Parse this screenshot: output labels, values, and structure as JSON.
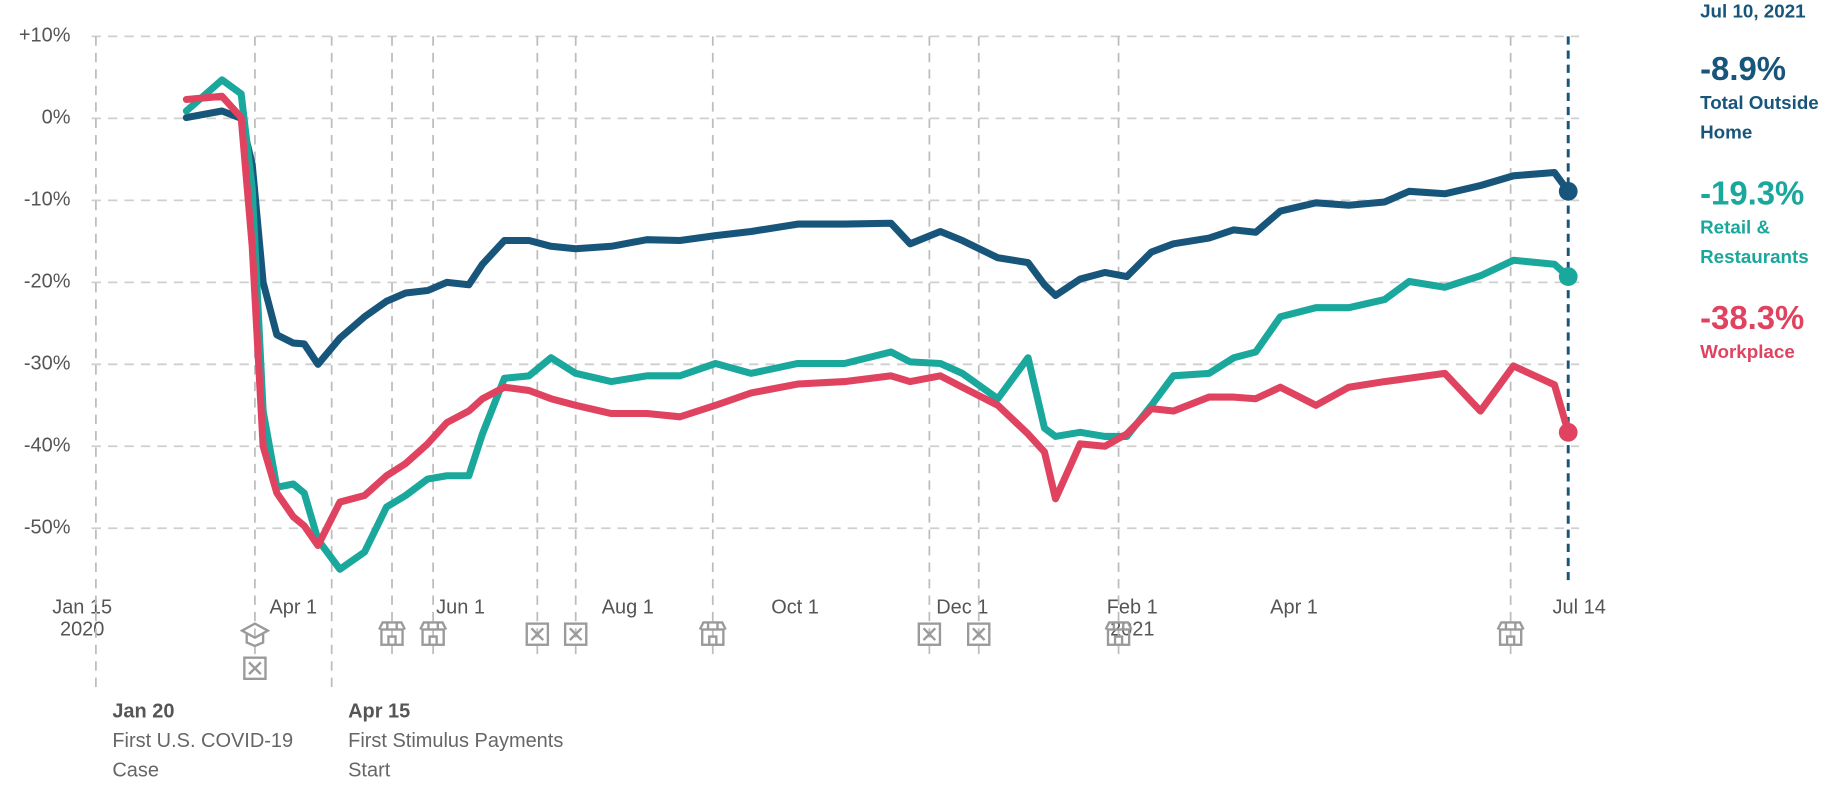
{
  "chart_data": {
    "type": "line",
    "xlim": [
      "2020-01-15",
      "2021-07-14"
    ],
    "xticks": [
      {
        "value": "2020-01-15",
        "label": "Jan 15\n2020"
      },
      {
        "value": "2020-04-01",
        "label": "Apr 1"
      },
      {
        "value": "2020-06-01",
        "label": "Jun 1"
      },
      {
        "value": "2020-08-01",
        "label": "Aug 1"
      },
      {
        "value": "2020-10-01",
        "label": "Oct 1"
      },
      {
        "value": "2020-12-01",
        "label": "Dec 1"
      },
      {
        "value": "2021-02-01",
        "label": "Feb 1\n2021"
      },
      {
        "value": "2021-04-01",
        "label": "Apr 1"
      },
      {
        "value": "2021-07-14",
        "label": "Jul 14"
      }
    ],
    "ylim": [
      -58,
      10
    ],
    "yticks": [
      {
        "value": 10,
        "label": "+10%"
      },
      {
        "value": 0,
        "label": "0%"
      },
      {
        "value": -10,
        "label": "-10%"
      },
      {
        "value": -20,
        "label": "-20%"
      },
      {
        "value": -30,
        "label": "-30%"
      },
      {
        "value": -40,
        "label": "-40%"
      },
      {
        "value": -50,
        "label": "-50%"
      }
    ],
    "grid": true,
    "current_date": "Jul 10, 2021",
    "x": [
      "2020-02-22",
      "2020-03-06",
      "2020-03-13",
      "2020-03-17",
      "2020-03-21",
      "2020-03-26",
      "2020-04-01",
      "2020-04-05",
      "2020-04-10",
      "2020-04-18",
      "2020-04-27",
      "2020-05-05",
      "2020-05-12",
      "2020-05-20",
      "2020-05-27",
      "2020-06-04",
      "2020-06-09",
      "2020-06-17",
      "2020-06-26",
      "2020-07-04",
      "2020-07-13",
      "2020-07-26",
      "2020-08-08",
      "2020-08-20",
      "2020-09-02",
      "2020-09-15",
      "2020-10-02",
      "2020-10-19",
      "2020-11-05",
      "2020-11-12",
      "2020-11-23",
      "2020-12-01",
      "2020-12-14",
      "2020-12-25",
      "2020-12-31",
      "2021-01-04",
      "2021-01-13",
      "2021-01-22",
      "2021-01-30",
      "2021-02-08",
      "2021-02-16",
      "2021-03-01",
      "2021-03-10",
      "2021-03-18",
      "2021-03-27",
      "2021-04-09",
      "2021-04-21",
      "2021-05-04",
      "2021-05-13",
      "2021-05-26",
      "2021-06-08",
      "2021-06-20",
      "2021-07-05",
      "2021-07-10"
    ],
    "series": [
      {
        "name": "Total Outside Home",
        "color": "#17567a",
        "end_label": "-8.9%",
        "values": [
          0.1,
          0.9,
          0,
          -5.6,
          -20,
          -26.4,
          -27.4,
          -27.5,
          -30,
          -26.8,
          -24.2,
          -22.3,
          -21.3,
          -21,
          -20,
          -20.3,
          -17.8,
          -14.9,
          -14.9,
          -15.6,
          -15.9,
          -15.6,
          -14.8,
          -14.9,
          -14.3,
          -13.8,
          -12.9,
          -12.9,
          -12.8,
          -15.3,
          -13.8,
          -14.9,
          -17,
          -17.6,
          -20.3,
          -21.6,
          -19.6,
          -18.8,
          -19.3,
          -16.3,
          -15.3,
          -14.6,
          -13.6,
          -13.9,
          -11.3,
          -10.3,
          -10.6,
          -10.2,
          -8.9,
          -9.2,
          -8.2,
          -7,
          -6.6,
          -8.9
        ]
      },
      {
        "name": "Retail & Restaurants",
        "color": "#1aa79c",
        "end_label": "-19.3%",
        "values": [
          0.9,
          4.7,
          3,
          -8.5,
          -35.7,
          -45,
          -44.6,
          -45.7,
          -51.4,
          -55,
          -52.9,
          -47.4,
          -46,
          -44,
          -43.6,
          -43.6,
          -38.5,
          -31.7,
          -31.4,
          -29.2,
          -31.1,
          -32.1,
          -31.4,
          -31.4,
          -29.9,
          -31.1,
          -29.9,
          -29.9,
          -28.5,
          -29.7,
          -29.9,
          -31.1,
          -34.2,
          -29.2,
          -37.8,
          -38.8,
          -38.3,
          -38.8,
          -38.8,
          -35,
          -31.4,
          -31.1,
          -29.2,
          -28.5,
          -24.2,
          -23.1,
          -23.1,
          -22.1,
          -19.9,
          -20.6,
          -19.2,
          -17.3,
          -17.8,
          -19.3
        ]
      },
      {
        "name": "Workplace",
        "color": "#e0435f",
        "end_label": "-38.3%",
        "values": [
          2.3,
          2.7,
          0.1,
          -15.6,
          -40,
          -45.7,
          -48.6,
          -49.7,
          -52.1,
          -46.8,
          -46,
          -43.6,
          -42.1,
          -39.7,
          -37.1,
          -35.7,
          -34.2,
          -32.8,
          -33.2,
          -34.2,
          -35,
          -36,
          -36,
          -36.4,
          -35,
          -33.5,
          -32.4,
          -32.1,
          -31.4,
          -32.1,
          -31.4,
          -32.8,
          -35,
          -38.5,
          -40.7,
          -46.4,
          -39.7,
          -40,
          -38.5,
          -35.4,
          -35.7,
          -34,
          -34,
          -34.2,
          -32.8,
          -35,
          -32.8,
          -32.1,
          -31.7,
          -31.1,
          -35.7,
          -30.2,
          -32.5,
          -38.3
        ]
      }
    ],
    "events": [
      {
        "date": "2020-01-20",
        "label": "Jan 20",
        "text": "First U.S. COVID-19 Case"
      },
      {
        "date": "2020-03-18",
        "icons": [
          "school",
          "closed"
        ]
      },
      {
        "date": "2020-04-15",
        "label": "Apr 15",
        "text": "First Stimulus Payments Start"
      },
      {
        "date": "2020-05-07",
        "icons": [
          "store"
        ]
      },
      {
        "date": "2020-05-22",
        "icons": [
          "store"
        ]
      },
      {
        "date": "2020-06-29",
        "icons": [
          "closed"
        ]
      },
      {
        "date": "2020-07-13",
        "icons": [
          "closed"
        ]
      },
      {
        "date": "2020-09-01",
        "icons": [
          "store"
        ]
      },
      {
        "date": "2020-11-19",
        "icons": [
          "closed"
        ]
      },
      {
        "date": "2020-12-07",
        "icons": [
          "closed"
        ]
      },
      {
        "date": "2021-01-27",
        "icons": [
          "store"
        ]
      },
      {
        "date": "2021-06-19",
        "icons": [
          "store"
        ]
      }
    ]
  }
}
